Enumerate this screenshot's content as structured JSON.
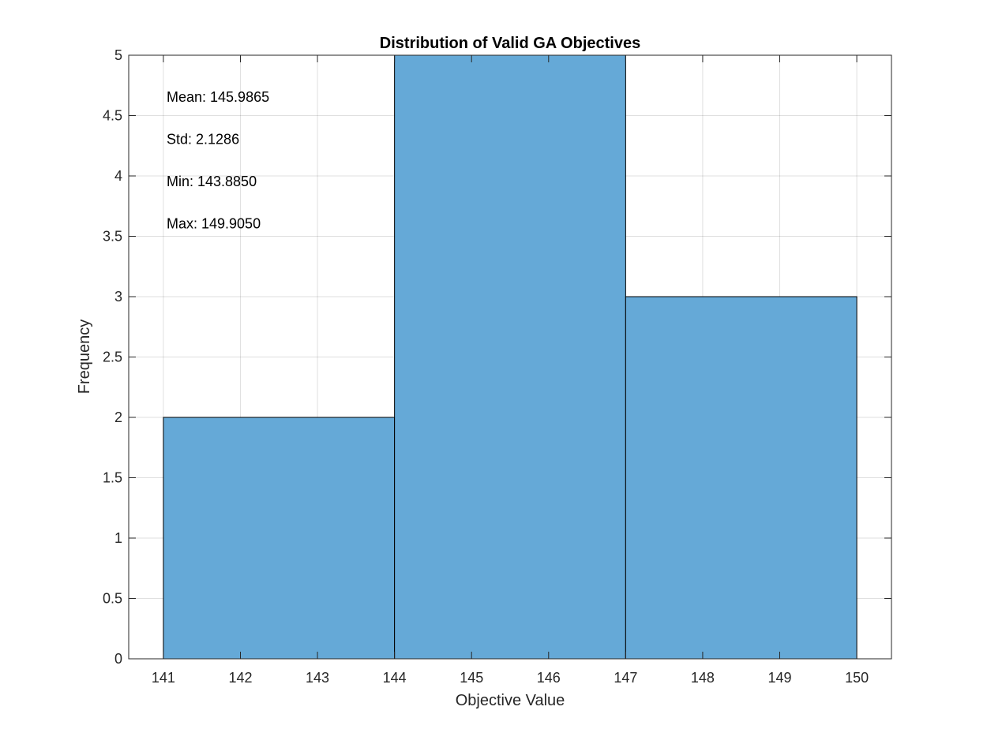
{
  "chart_data": {
    "type": "bar",
    "title": "Distribution of Valid GA Objectives",
    "xlabel": "Objective Value",
    "ylabel": "Frequency",
    "xlim": [
      140.55,
      150.45
    ],
    "ylim": [
      0,
      5
    ],
    "bins": [
      {
        "x0": 141,
        "x1": 144,
        "count": 2
      },
      {
        "x0": 144,
        "x1": 147,
        "count": 5
      },
      {
        "x0": 147,
        "x1": 150,
        "count": 3
      }
    ],
    "x_ticks": [
      "141",
      "142",
      "143",
      "144",
      "145",
      "146",
      "147",
      "148",
      "149",
      "150"
    ],
    "y_ticks": [
      "0",
      "0.5",
      "1",
      "1.5",
      "2",
      "2.5",
      "3",
      "3.5",
      "4",
      "4.5",
      "5"
    ],
    "annotations": [
      "Mean: 145.9865",
      "Std: 2.1286",
      "Min: 143.8850",
      "Max: 149.9050"
    ],
    "grid": true,
    "bar_color": "#65A9D7",
    "bar_edge_color": "#000000"
  }
}
